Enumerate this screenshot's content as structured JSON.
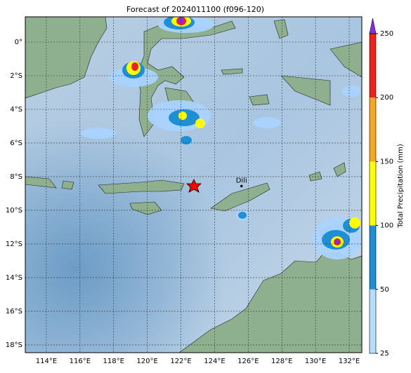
{
  "map": {
    "title": "Forecast of 2024011100 (f096-120)",
    "xlim": [
      112.75,
      132.75
    ],
    "ylim": [
      -18.46,
      1.5
    ],
    "xticks": [
      {
        "value": 114,
        "label": "114°E"
      },
      {
        "value": 116,
        "label": "116°E"
      },
      {
        "value": 118,
        "label": "118°E"
      },
      {
        "value": 120,
        "label": "120°E"
      },
      {
        "value": 122,
        "label": "122°E"
      },
      {
        "value": 124,
        "label": "124°E"
      },
      {
        "value": 126,
        "label": "126°E"
      },
      {
        "value": 128,
        "label": "128°E"
      },
      {
        "value": 130,
        "label": "130°E"
      },
      {
        "value": 132,
        "label": "132°E"
      }
    ],
    "yticks": [
      {
        "value": 0,
        "label": "0°"
      },
      {
        "value": -2,
        "label": "2°S"
      },
      {
        "value": -4,
        "label": "4°S"
      },
      {
        "value": -6,
        "label": "6°S"
      },
      {
        "value": -8,
        "label": "8°S"
      },
      {
        "value": -10,
        "label": "10°S"
      },
      {
        "value": -12,
        "label": "12°S"
      },
      {
        "value": -14,
        "label": "14°S"
      },
      {
        "value": -16,
        "label": "16°S"
      },
      {
        "value": -18,
        "label": "18°S"
      }
    ],
    "grid": true,
    "places": [
      {
        "name": "Dili",
        "lon": 125.6,
        "lat": -8.56
      }
    ],
    "colorbar": {
      "label": "Total Precipitation (mm)",
      "levels": [
        25,
        50,
        100,
        150,
        200,
        250
      ],
      "colors": [
        "#b3dcff",
        "#1e8fd5",
        "#ffff00",
        "#f5a623",
        "#e8231b"
      ],
      "extend_color": "#8a2be2"
    }
  }
}
